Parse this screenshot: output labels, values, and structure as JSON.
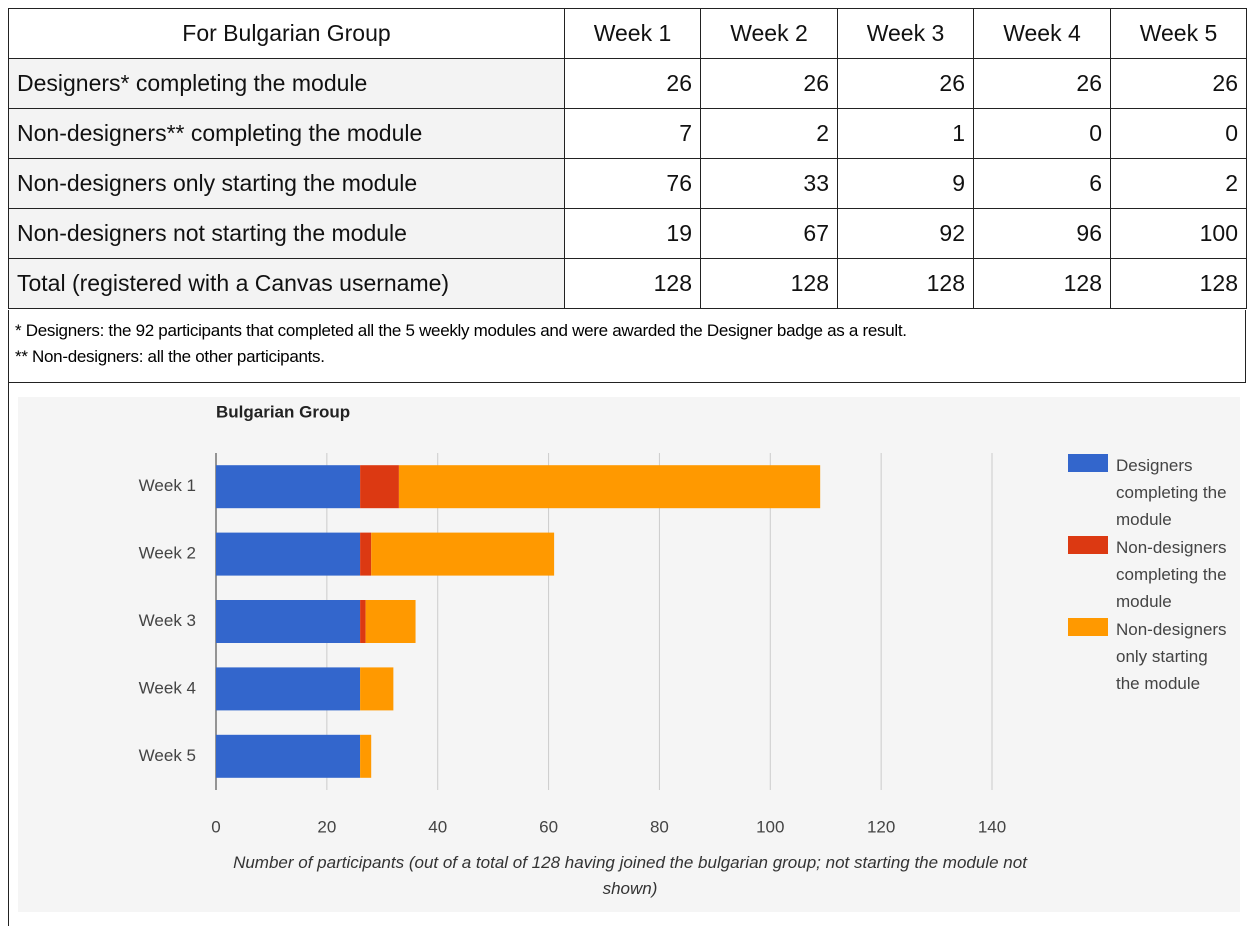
{
  "table": {
    "header": [
      "For Bulgarian Group",
      "Week 1",
      "Week 2",
      "Week 3",
      "Week 4",
      "Week 5"
    ],
    "rows": [
      [
        "Designers* completing the module",
        26,
        26,
        26,
        26,
        26
      ],
      [
        "Non-designers** completing the module",
        7,
        2,
        1,
        0,
        0
      ],
      [
        "Non-designers only starting the module",
        76,
        33,
        9,
        6,
        2
      ],
      [
        "Non-designers not starting the module",
        19,
        67,
        92,
        96,
        100
      ],
      [
        "Total (registered with a Canvas username)",
        128,
        128,
        128,
        128,
        128
      ]
    ]
  },
  "notes": [
    "* Designers: the 92 participants that completed all the 5 weekly modules and were awarded the Designer badge as a result.",
    "** Non-designers: all the other participants."
  ],
  "chart_data": {
    "type": "bar",
    "orientation": "horizontal",
    "stacked": true,
    "title": "Bulgarian Group",
    "categories": [
      "Week 1",
      "Week 2",
      "Week 3",
      "Week 4",
      "Week 5"
    ],
    "series": [
      {
        "name": "Designers completing the module",
        "color": "#3366cc",
        "values": [
          26,
          26,
          26,
          26,
          26
        ]
      },
      {
        "name": "Non-designers completing the module",
        "color": "#dc3912",
        "values": [
          7,
          2,
          1,
          0,
          0
        ]
      },
      {
        "name": "Non-designers only starting the module",
        "color": "#ff9900",
        "values": [
          76,
          33,
          9,
          6,
          2
        ]
      }
    ],
    "xlim": [
      0,
      140
    ],
    "xticks": [
      0,
      20,
      40,
      60,
      80,
      100,
      120,
      140
    ],
    "grid": true,
    "legend": "right",
    "xlabel": "Number of participants (out of a total of 128 having joined the bulgarian group; not starting the module not shown)"
  }
}
